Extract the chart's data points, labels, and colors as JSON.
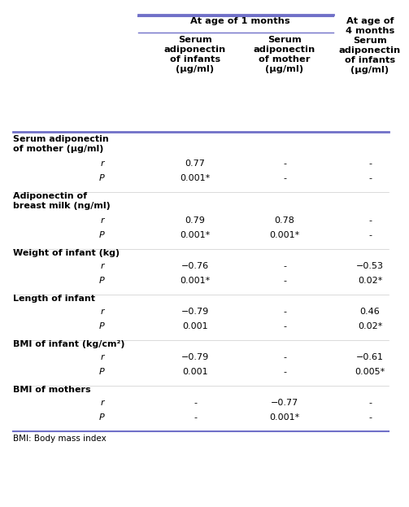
{
  "col_headers_top": [
    "At age of 1 months",
    "At age of\n4 months\nSerum\nadiponectin\nof infants\n(μg/ml)"
  ],
  "col_sub_headers": [
    "Serum\nadiponectin\nof infants\n(μg/ml)",
    "Serum\nadiponectin\nof mother\n(μg/ml)"
  ],
  "row_groups": [
    {
      "label": "Serum adiponectin\nof mother (μg/ml)",
      "rows": [
        {
          "stat": "r",
          "vals": [
            "0.77",
            "-",
            "-"
          ]
        },
        {
          "stat": "P",
          "vals": [
            "0.001*",
            "-",
            "-"
          ]
        }
      ]
    },
    {
      "label": "Adiponectin of\nbreast milk (ng/ml)",
      "rows": [
        {
          "stat": "r",
          "vals": [
            "0.79",
            "0.78",
            "-"
          ]
        },
        {
          "stat": "P",
          "vals": [
            "0.001*",
            "0.001*",
            "-"
          ]
        }
      ]
    },
    {
      "label": "Weight of infant (kg)",
      "rows": [
        {
          "stat": "r",
          "vals": [
            "−0.76",
            "-",
            "−0.53"
          ]
        },
        {
          "stat": "P",
          "vals": [
            "0.001*",
            "-",
            "0.02*"
          ]
        }
      ]
    },
    {
      "label": "Length of infant",
      "rows": [
        {
          "stat": "r",
          "vals": [
            "−0.79",
            "-",
            "0.46"
          ]
        },
        {
          "stat": "P",
          "vals": [
            "0.001",
            "-",
            "0.02*"
          ]
        }
      ]
    },
    {
      "label": "BMI of infant (kg/cm²)",
      "rows": [
        {
          "stat": "r",
          "vals": [
            "−0.79",
            "-",
            "−0.61"
          ]
        },
        {
          "stat": "P",
          "vals": [
            "0.001",
            "-",
            "0.005*"
          ]
        }
      ]
    },
    {
      "label": "BMI of mothers",
      "rows": [
        {
          "stat": "r",
          "vals": [
            "-",
            "−0.77",
            "-"
          ]
        },
        {
          "stat": "P",
          "vals": [
            "-",
            "0.001*",
            "-"
          ]
        }
      ]
    }
  ],
  "footnote": "BMI: Body mass index",
  "bg_color": "#ffffff",
  "text_color": "#000000",
  "header_line_color": "#7070c8",
  "body_line_color": "#7070c8"
}
